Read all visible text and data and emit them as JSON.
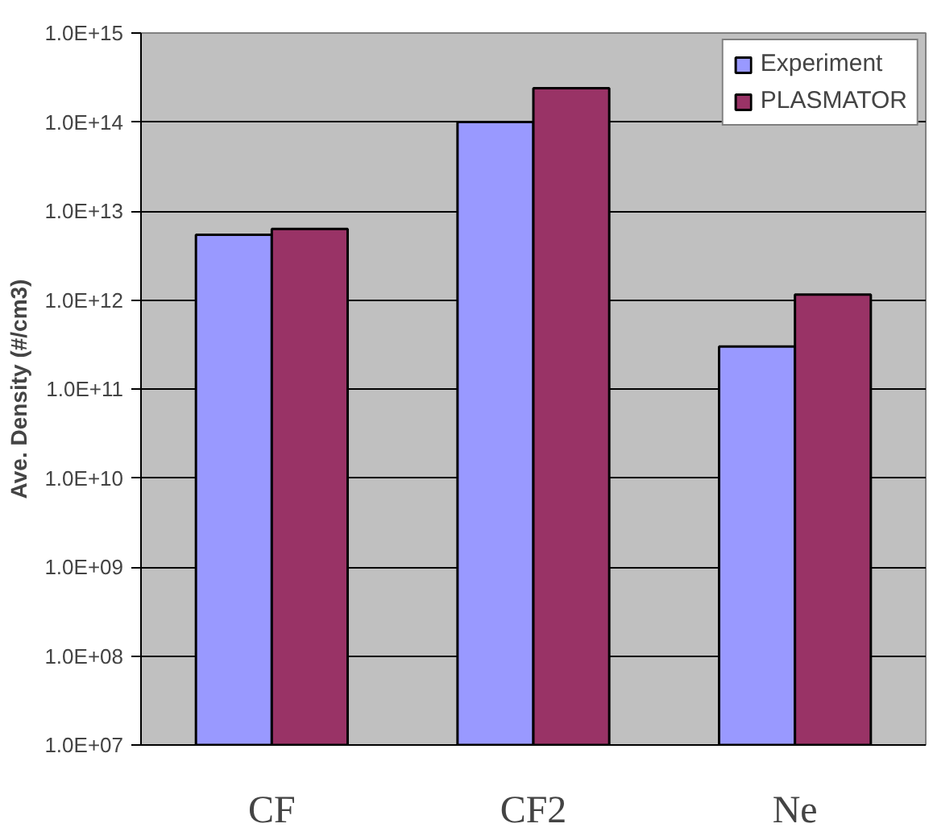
{
  "chart_data": {
    "type": "bar",
    "ylabel": "Ave. Density (#/cm3)",
    "categories": [
      "CF",
      "CF2",
      "Ne"
    ],
    "series": [
      {
        "name": "Experiment",
        "color": "#9999ff",
        "values": [
          5400000000000.0,
          100000000000000.0,
          300000000000.0
        ]
      },
      {
        "name": "PLASMATOR",
        "color": "#993366",
        "values": [
          6300000000000.0,
          240000000000000.0,
          1150000000000.0
        ]
      }
    ],
    "log": true,
    "ylim": [
      10000000.0,
      1000000000000000.0
    ],
    "yticks": [
      {
        "value": 10000000.0,
        "label": "1.0E+07"
      },
      {
        "value": 100000000.0,
        "label": "1.0E+08"
      },
      {
        "value": 1000000000.0,
        "label": "1.0E+09"
      },
      {
        "value": 10000000000.0,
        "label": "1.0E+10"
      },
      {
        "value": 100000000000.0,
        "label": "1.0E+11"
      },
      {
        "value": 1000000000000.0,
        "label": "1.0E+12"
      },
      {
        "value": 10000000000000.0,
        "label": "1.0E+13"
      },
      {
        "value": 100000000000000.0,
        "label": "1.0E+14"
      },
      {
        "value": 1000000000000000.0,
        "label": "1.0E+15"
      }
    ],
    "grid": "y",
    "legend": "top right"
  }
}
